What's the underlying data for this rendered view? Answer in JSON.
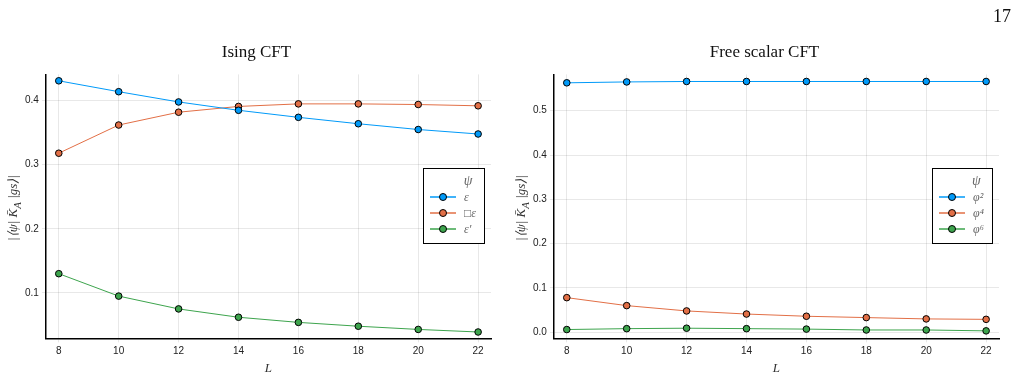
{
  "chart_data": [
    {
      "type": "line",
      "title": "Ising CFT",
      "xlabel": "L",
      "ylabel": "|⟨ψ| K̄$_{A}$ |gs⟩|",
      "legend_title": "ψ",
      "legend": "right",
      "grid": true,
      "marker": "circle",
      "line_style": "solid",
      "x": [
        8,
        10,
        12,
        14,
        16,
        18,
        20,
        22
      ],
      "xlim": [
        7.57,
        22.43
      ],
      "xticks": [
        8,
        10,
        12,
        14,
        16,
        18,
        20,
        22
      ],
      "ylim": [
        0.029,
        0.441
      ],
      "yticks": [
        0.1,
        0.2,
        0.3,
        0.4
      ],
      "series": [
        {
          "name": "ε",
          "color": "#009af9",
          "values": [
            0.431,
            0.414,
            0.398,
            0.385,
            0.374,
            0.364,
            0.355,
            0.348
          ]
        },
        {
          "name": "□ε",
          "color": "#e26f46",
          "values": [
            0.318,
            0.362,
            0.382,
            0.391,
            0.395,
            0.395,
            0.394,
            0.392
          ]
        },
        {
          "name": "ε′",
          "color": "#3da44d",
          "values": [
            0.13,
            0.095,
            0.075,
            0.062,
            0.054,
            0.048,
            0.043,
            0.039
          ]
        }
      ]
    },
    {
      "type": "line",
      "title": "Free scalar CFT",
      "xlabel": "L",
      "ylabel": "|⟨ψ| K̄$_{A}$ |gs⟩|",
      "legend_title": "ψ",
      "legend": "right",
      "grid": true,
      "marker": "circle",
      "line_style": "solid",
      "annotations": [
        "17"
      ],
      "x": [
        8,
        10,
        12,
        14,
        16,
        18,
        20,
        22
      ],
      "xlim": [
        7.57,
        22.43
      ],
      "xticks": [
        8,
        10,
        12,
        14,
        16,
        18,
        20,
        22
      ],
      "ylim": [
        -0.014,
        0.582
      ],
      "yticks": [
        {
          "value": 0,
          "label": "0.0"
        },
        0.1,
        0.2,
        0.3,
        0.4,
        0.5
      ],
      "series": [
        {
          "name": "φ²",
          "color": "#009af9",
          "values": [
            0.563,
            0.565,
            0.566,
            0.566,
            0.566,
            0.566,
            0.566,
            0.566
          ]
        },
        {
          "name": "φ⁴",
          "color": "#e26f46",
          "values": [
            0.078,
            0.06,
            0.048,
            0.041,
            0.036,
            0.033,
            0.03,
            0.029
          ]
        },
        {
          "name": "φ⁶",
          "color": "#3da44d",
          "values": [
            0.006,
            0.008,
            0.009,
            0.008,
            0.007,
            0.005,
            0.005,
            0.003
          ]
        }
      ]
    }
  ]
}
